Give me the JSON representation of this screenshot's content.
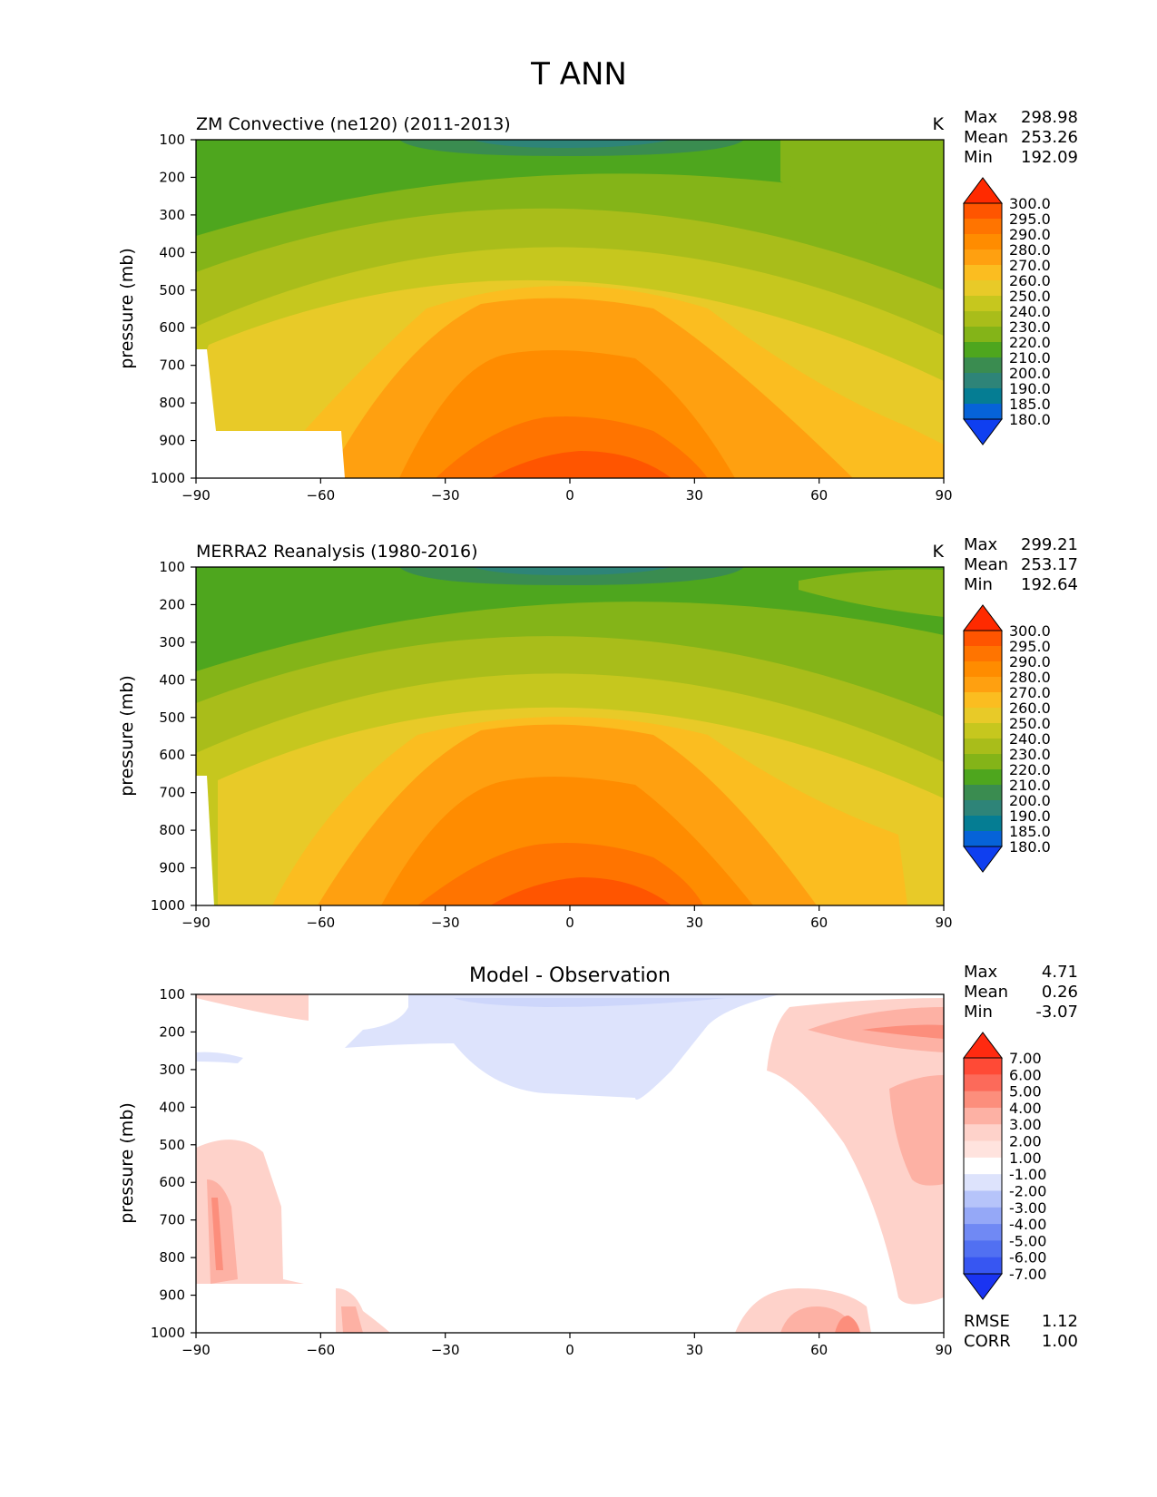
{
  "figure": {
    "suptitle": "T ANN"
  },
  "chart_data": [
    {
      "type": "heatmap",
      "title": "ZM Convective (ne120) (2011-2013)",
      "units": "K",
      "ylabel": "pressure (mb)",
      "xlabel": "",
      "x_ticks": [
        "−90",
        "−60",
        "−30",
        "0",
        "30",
        "60",
        "90"
      ],
      "y_ticks": [
        "100",
        "200",
        "300",
        "400",
        "500",
        "600",
        "700",
        "800",
        "900",
        "1000"
      ],
      "xlim": [
        -90,
        90
      ],
      "ylim": [
        1000,
        100
      ],
      "y_inverted": true,
      "stats": [
        {
          "label": "Max",
          "value": "298.98"
        },
        {
          "label": "Mean",
          "value": "253.26"
        },
        {
          "label": "Min",
          "value": "192.09"
        }
      ],
      "colorbar": {
        "labels": [
          "300.0",
          "295.0",
          "290.0",
          "280.0",
          "270.0",
          "260.0",
          "250.0",
          "240.0",
          "230.0",
          "220.0",
          "210.0",
          "200.0",
          "190.0",
          "185.0",
          "180.0"
        ],
        "colors": [
          "#ff2a00",
          "#ff5500",
          "#ff7400",
          "#ff8c00",
          "#ffa010",
          "#fbbd20",
          "#e8ca28",
          "#c6c71e",
          "#a9bd1a",
          "#84b418",
          "#4ea61e",
          "#3a8c50",
          "#2e8478",
          "#057d93",
          "#0663d8",
          "#0f3ff0"
        ],
        "extend": "both"
      },
      "field": {
        "max": 298.98,
        "min": 192.09,
        "masked": "low-level topography near Antarctica"
      }
    },
    {
      "type": "heatmap",
      "title": "MERRA2 Reanalysis (1980-2016)",
      "units": "K",
      "ylabel": "pressure (mb)",
      "xlabel": "",
      "x_ticks": [
        "−90",
        "−60",
        "−30",
        "0",
        "30",
        "60",
        "90"
      ],
      "y_ticks": [
        "100",
        "200",
        "300",
        "400",
        "500",
        "600",
        "700",
        "800",
        "900",
        "1000"
      ],
      "xlim": [
        -90,
        90
      ],
      "ylim": [
        1000,
        100
      ],
      "y_inverted": true,
      "stats": [
        {
          "label": "Max",
          "value": "299.21"
        },
        {
          "label": "Mean",
          "value": "253.17"
        },
        {
          "label": "Min",
          "value": "192.64"
        }
      ],
      "colorbar": {
        "labels": [
          "300.0",
          "295.0",
          "290.0",
          "280.0",
          "270.0",
          "260.0",
          "250.0",
          "240.0",
          "230.0",
          "220.0",
          "210.0",
          "200.0",
          "190.0",
          "185.0",
          "180.0"
        ],
        "colors": [
          "#ff2a00",
          "#ff5500",
          "#ff7400",
          "#ff8c00",
          "#ffa010",
          "#fbbd20",
          "#e8ca28",
          "#c6c71e",
          "#a9bd1a",
          "#84b418",
          "#4ea61e",
          "#3a8c50",
          "#2e8478",
          "#057d93",
          "#0663d8",
          "#0f3ff0"
        ],
        "extend": "both"
      },
      "field": {
        "max": 299.21,
        "min": 192.64
      }
    },
    {
      "type": "heatmap",
      "title": "Model - Observation",
      "ylabel": "pressure (mb)",
      "xlabel": "",
      "x_ticks": [
        "−90",
        "−60",
        "−30",
        "0",
        "30",
        "60",
        "90"
      ],
      "y_ticks": [
        "100",
        "200",
        "300",
        "400",
        "500",
        "600",
        "700",
        "800",
        "900",
        "1000"
      ],
      "xlim": [
        -90,
        90
      ],
      "ylim": [
        1000,
        100
      ],
      "y_inverted": true,
      "stats": [
        {
          "label": "Max",
          "value": "4.71"
        },
        {
          "label": "Mean",
          "value": "0.26"
        },
        {
          "label": "Min",
          "value": "-3.07"
        }
      ],
      "metrics": [
        {
          "label": "RMSE",
          "value": "1.12"
        },
        {
          "label": "CORR",
          "value": "1.00"
        }
      ],
      "colorbar": {
        "labels": [
          "7.00",
          "6.00",
          "5.00",
          "4.00",
          "3.00",
          "2.00",
          "1.00",
          "-1.00",
          "-2.00",
          "-3.00",
          "-4.00",
          "-5.00",
          "-6.00",
          "-7.00"
        ],
        "colors": [
          "#ff2a10",
          "#ff4a36",
          "#fc6a5a",
          "#fc8e7c",
          "#fdb1a4",
          "#fed2ca",
          "#ffe3de",
          "#ffffff",
          "#dde3fc",
          "#b6c4fa",
          "#95a8f7",
          "#7089f4",
          "#5170f2",
          "#3756f2",
          "#1a34f2"
        ],
        "extend": "both"
      },
      "field": {
        "max": 4.71,
        "min": -3.07
      }
    }
  ]
}
